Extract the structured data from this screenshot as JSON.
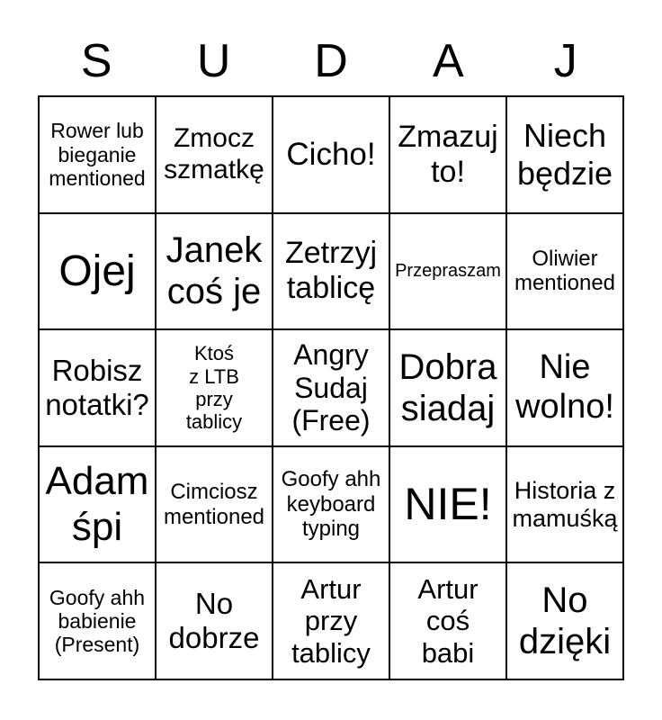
{
  "header": {
    "letters": [
      "S",
      "U",
      "D",
      "A",
      "J"
    ]
  },
  "card": {
    "rows": [
      {
        "cells": [
          {
            "text": "Rower lub\nbieganie\nmentioned"
          },
          {
            "text": "Zmocz\nszmatkę"
          },
          {
            "text": "Cicho!"
          },
          {
            "text": "Zmazuj\nto!"
          },
          {
            "text": "Niech\nbędzie"
          }
        ]
      },
      {
        "cells": [
          {
            "text": "Ojej"
          },
          {
            "text": "Janek\ncoś je"
          },
          {
            "text": "Zetrzyj\ntablicę"
          },
          {
            "text": "Przepraszam"
          },
          {
            "text": "Oliwier\nmentioned"
          }
        ]
      },
      {
        "cells": [
          {
            "text": "Robisz\nnotatki?"
          },
          {
            "text": "Ktoś\nz LTB\nprzy\ntablicy"
          },
          {
            "text": "Angry\nSudaj\n(Free)"
          },
          {
            "text": "Dobra\nsiadaj"
          },
          {
            "text": "Nie\nwolno!"
          }
        ]
      },
      {
        "cells": [
          {
            "text": "Adam\nśpi"
          },
          {
            "text": "Cimciosz\nmentioned"
          },
          {
            "text": "Goofy ahh\nkeyboard\ntyping"
          },
          {
            "text": "NIE!"
          },
          {
            "text": "Historia z\nmamuśką"
          }
        ]
      },
      {
        "cells": [
          {
            "text": "Goofy ahh\nbabienie\n(Present)"
          },
          {
            "text": "No\ndobrze"
          },
          {
            "text": "Artur\nprzy\ntablicy"
          },
          {
            "text": "Artur\ncoś\nbabi"
          },
          {
            "text": "No\ndzięki"
          }
        ]
      }
    ]
  },
  "colors": {
    "background": "#ffffff",
    "grid_line": "#000000",
    "text": "#000000"
  }
}
